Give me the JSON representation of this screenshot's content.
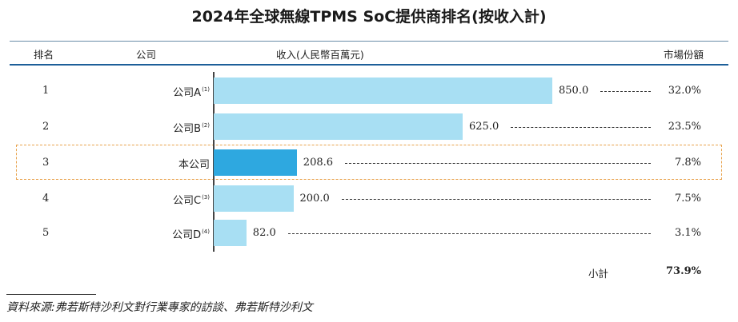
{
  "title": "2024年全球無線TPMS SoC提供商排名(按收入計)",
  "headers": {
    "rank": "排名",
    "company": "公司",
    "revenue": "收入(人民幣百萬元)",
    "share": "市場份額"
  },
  "colors": {
    "bar": "#a8dff3",
    "bar_highlight": "#2ea8e0",
    "highlight_border": "#e8a24c",
    "header_rule": "#1d5f99"
  },
  "rows": [
    {
      "rank": "1",
      "company": "公司A",
      "note": "(1)",
      "value": 850.0,
      "value_label": "850.0",
      "share": "32.0%",
      "highlight": false
    },
    {
      "rank": "2",
      "company": "公司B",
      "note": "(2)",
      "value": 625.0,
      "value_label": "625.0",
      "share": "23.5%",
      "highlight": false
    },
    {
      "rank": "3",
      "company": "本公司",
      "note": "",
      "value": 208.6,
      "value_label": "208.6",
      "share": "7.8%",
      "highlight": true
    },
    {
      "rank": "4",
      "company": "公司C",
      "note": "(3)",
      "value": 200.0,
      "value_label": "200.0",
      "share": "7.5%",
      "highlight": false
    },
    {
      "rank": "5",
      "company": "公司D",
      "note": "(4)",
      "value": 82.0,
      "value_label": "82.0",
      "share": "3.1%",
      "highlight": false
    }
  ],
  "subtotal": {
    "label": "小計",
    "value": "73.9%"
  },
  "source": "資料來源:弗若斯特沙利文對行業專家的訪談、弗若斯特沙利文",
  "chart_data": {
    "type": "bar",
    "orientation": "horizontal",
    "title": "2024年全球無線TPMS SoC提供商排名(按收入計)",
    "categories": [
      "公司A",
      "公司B",
      "本公司",
      "公司C",
      "公司D"
    ],
    "values": [
      850.0,
      625.0,
      208.6,
      200.0,
      82.0
    ],
    "xlabel": "收入(人民幣百萬元)",
    "ylabel": "公司",
    "market_share": [
      "32.0%",
      "23.5%",
      "7.8%",
      "7.5%",
      "3.1%"
    ],
    "xlim": [
      0,
      850
    ],
    "grid": false,
    "legend": "none"
  }
}
